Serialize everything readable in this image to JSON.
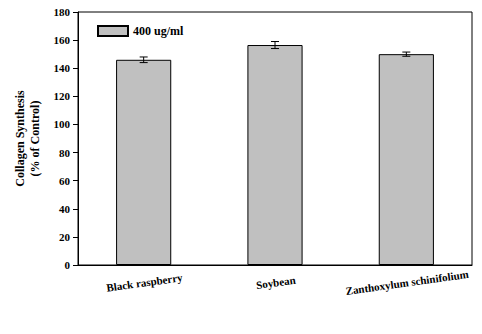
{
  "chart_data": {
    "type": "bar",
    "ylabel": "Collagen Synthesis\n(% of Control)",
    "categories": [
      "Black raspberry",
      "Soybean",
      "Zanthoxylum schinifolium"
    ],
    "series": [
      {
        "name": "400 ug/ml",
        "color": "#c0c0c0",
        "values": [
          146,
          156.5,
          150
        ],
        "errors": [
          2,
          2.5,
          1.5
        ]
      }
    ],
    "ylim": [
      0,
      180
    ],
    "yticks": [
      0,
      20,
      40,
      60,
      80,
      100,
      120,
      140,
      160,
      180
    ],
    "legend": "upper left",
    "grid": false
  }
}
